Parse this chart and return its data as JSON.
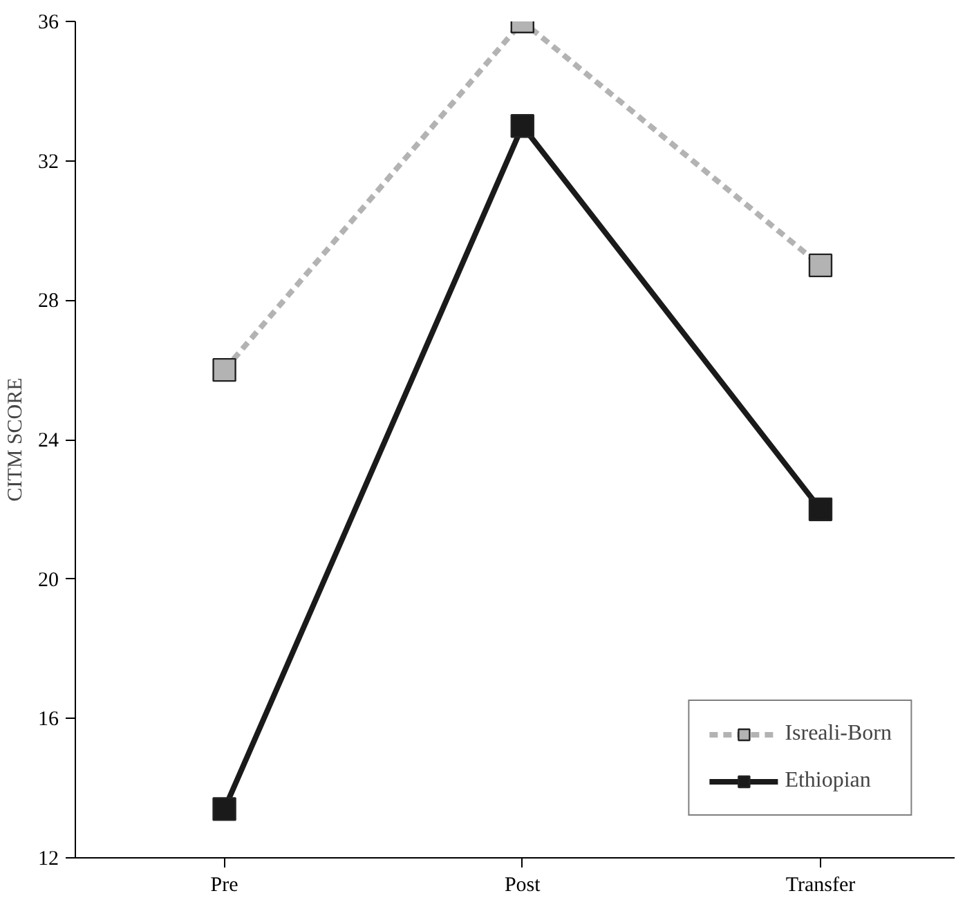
{
  "chart_data": {
    "type": "line",
    "ylabel": "CITM SCORE",
    "categories": [
      "Pre",
      "Post",
      "Transfer"
    ],
    "series": [
      {
        "name": "Isreali-Born",
        "color": "#b3b3b3",
        "values": [
          26,
          36,
          29
        ],
        "line_style": "dashed"
      },
      {
        "name": "Ethiopian",
        "color": "#1a1a1a",
        "values": [
          13.4,
          33,
          22
        ],
        "line_style": "solid"
      }
    ],
    "ylim": [
      12,
      36
    ],
    "yticks": [
      12,
      16,
      20,
      24,
      28,
      32,
      36
    ],
    "marker": "square",
    "legend": "bottom right",
    "grid": false
  }
}
